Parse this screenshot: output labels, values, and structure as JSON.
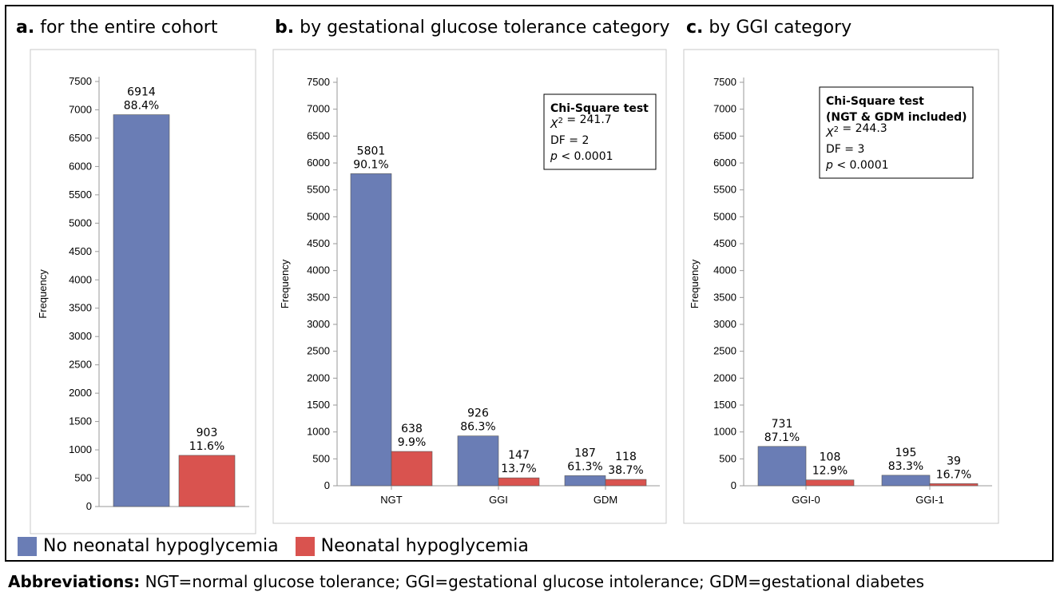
{
  "panel_titles": [
    {
      "letter": "a.",
      "text": "for the entire cohort"
    },
    {
      "letter": "b.",
      "text": "by gestational glucose tolerance category"
    },
    {
      "letter": "c.",
      "text": "by GGI category"
    }
  ],
  "legend": [
    {
      "label": "No neonatal hypoglycemia",
      "color": "#6a7db5"
    },
    {
      "label": "Neonatal hypoglycemia",
      "color": "#d9534f"
    }
  ],
  "abbreviations": {
    "label": "Abbreviations:",
    "text": "NGT=normal glucose tolerance; GGI=gestational glucose intolerance; GDM=gestational diabetes"
  },
  "chart_data": [
    {
      "type": "bar",
      "ylabel": "Frequency",
      "ylim": [
        0,
        7500
      ],
      "yticks": [
        "0",
        "500",
        "1000",
        "1500",
        "2000",
        "2500",
        "3000",
        "3500",
        "4000",
        "4500",
        "5000",
        "5500",
        "6000",
        "6500",
        "7000",
        "7500"
      ],
      "categories": [
        ""
      ],
      "series": [
        {
          "values": [
            6914
          ],
          "labels": [
            "6914",
            "88.4%"
          ]
        },
        {
          "values": [
            903
          ],
          "labels": [
            "903",
            "11.6%"
          ]
        }
      ],
      "stats": []
    },
    {
      "type": "bar",
      "ylabel": "Frequency",
      "ylim": [
        0,
        7500
      ],
      "yticks": [
        "0",
        "500",
        "1000",
        "1500",
        "2000",
        "2500",
        "3000",
        "3500",
        "4000",
        "4500",
        "5000",
        "5500",
        "6000",
        "6500",
        "7000",
        "7500"
      ],
      "categories": [
        "NGT",
        "GGI",
        "GDM"
      ],
      "series": [
        {
          "values": [
            5801,
            926,
            187
          ],
          "labels": [
            [
              "5801",
              "90.1%"
            ],
            [
              "926",
              "86.3%"
            ],
            [
              "187",
              "61.3%"
            ]
          ]
        },
        {
          "values": [
            638,
            147,
            118
          ],
          "labels": [
            [
              "638",
              "9.9%"
            ],
            [
              "147",
              "13.7%"
            ],
            [
              "118",
              "38.7%"
            ]
          ]
        }
      ],
      "stats": [
        {
          "bold": "Chi-Square test"
        },
        {
          "italic": "X",
          "sup": "2",
          "rest": " = 241.7"
        },
        {
          "rest": "DF = 2"
        },
        {
          "italic": "p",
          "rest": " < 0.0001"
        }
      ]
    },
    {
      "type": "bar",
      "ylabel": "Frequency",
      "ylim": [
        0,
        7500
      ],
      "yticks": [
        "0",
        "500",
        "1000",
        "1500",
        "2000",
        "2500",
        "3000",
        "3500",
        "4000",
        "4500",
        "5000",
        "5500",
        "6000",
        "6500",
        "7000",
        "7500"
      ],
      "categories": [
        "GGI-0",
        "GGI-1"
      ],
      "series": [
        {
          "values": [
            731,
            195
          ],
          "labels": [
            [
              "731",
              "87.1%"
            ],
            [
              "195",
              "83.3%"
            ]
          ]
        },
        {
          "values": [
            108,
            39
          ],
          "labels": [
            [
              "108",
              "12.9%"
            ],
            [
              "39",
              "16.7%"
            ]
          ]
        }
      ],
      "stats": [
        {
          "bold": "Chi-Square test"
        },
        {
          "bold": "(NGT & GDM included)"
        },
        {
          "italic": "X",
          "sup": "2",
          "rest": " = 244.3"
        },
        {
          "rest": "DF = 3"
        },
        {
          "italic": "p",
          "rest": " < 0.0001"
        }
      ]
    }
  ]
}
